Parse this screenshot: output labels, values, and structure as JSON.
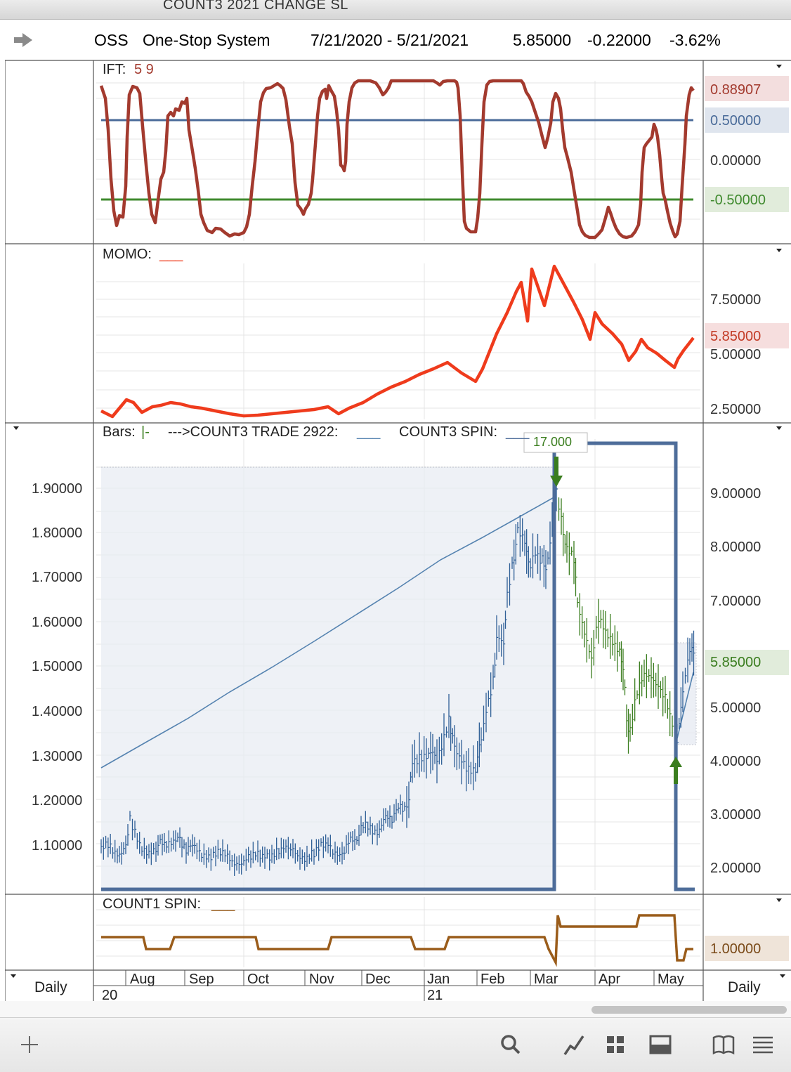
{
  "window": {
    "title": "COUNT3 2021 CHANGE SL"
  },
  "header": {
    "symbol": "OSS",
    "name": "One-Stop System",
    "date_range": "7/21/2020 - 5/21/2021",
    "last": "5.85000",
    "change": "-0.22000",
    "change_pct": "-3.62%"
  },
  "ift_panel": {
    "label": "IFT:",
    "params": "5 9",
    "axis": [
      "0.50000",
      "0.00000"
    ],
    "badges": {
      "current": "0.88907",
      "upper": "0.50000",
      "lower": "-0.50000"
    }
  },
  "momo_panel": {
    "label": "MOMO:",
    "legend": "___",
    "axis": [
      "7.50000",
      "5.00000",
      "2.50000"
    ],
    "badge": "5.85000"
  },
  "price_panel": {
    "label_bars": "Bars:",
    "bars_glyph": "|-",
    "label_trade": "--->COUNT3 TRADE 2922:",
    "trade_legend": "___",
    "label_spin": "COUNT3 SPIN:",
    "spin_legend": "___",
    "flag_text": "17.000",
    "left_axis": [
      "1.90000",
      "1.80000",
      "1.70000",
      "1.60000",
      "1.50000",
      "1.40000",
      "1.30000",
      "1.20000",
      "1.10000"
    ],
    "right_axis": [
      "9.00000",
      "8.00000",
      "7.00000",
      "5.00000",
      "4.00000",
      "3.00000",
      "2.00000"
    ],
    "badge": "5.85000"
  },
  "count1_panel": {
    "label": "COUNT1 SPIN:",
    "legend": "___",
    "badge": "1.00000"
  },
  "x_axis": {
    "months": [
      "Aug",
      "Sep",
      "Oct",
      "Nov",
      "Dec",
      "Jan",
      "Feb",
      "Mar",
      "Apr",
      "May"
    ],
    "years": [
      "20",
      "21"
    ],
    "left_period": "Daily",
    "right_period": "Daily"
  },
  "colors": {
    "ift_line": "#a33a2e",
    "upper_line": "#4a6b99",
    "lower_line": "#3f8a2e",
    "momo_line": "#ef3b1c",
    "price_up": "#2f5f96",
    "price_down": "#3a7d1e",
    "spin_line": "#4e6d9a",
    "count1_line": "#9a5c1a"
  },
  "toolbar": {
    "icons": [
      "plus-icon",
      "search-icon",
      "line-chart-icon",
      "grid-icon",
      "window-icon",
      "book-icon",
      "menu-icon"
    ]
  }
}
